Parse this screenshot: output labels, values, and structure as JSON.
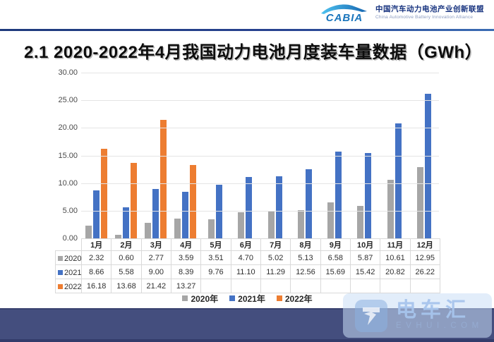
{
  "header": {
    "logo_text": "CABIA",
    "org_cn": "中国汽车动力电池产业创新联盟",
    "org_en": "China Automotive Battery Innovation Alliance"
  },
  "title": "2.1 2020-2022年4月我国动力电池月度装车量数据（GWh）",
  "chart_data": {
    "type": "bar",
    "title": "2020-2022年4月我国动力电池月度装车量数据（GWh）",
    "categories": [
      "1月",
      "2月",
      "3月",
      "4月",
      "5月",
      "6月",
      "7月",
      "8月",
      "9月",
      "10月",
      "11月",
      "12月"
    ],
    "series": [
      {
        "name": "2020年",
        "color": "#a6a6a6",
        "values": [
          2.32,
          0.6,
          2.77,
          3.59,
          3.51,
          4.7,
          5.02,
          5.13,
          6.58,
          5.87,
          10.61,
          12.95
        ]
      },
      {
        "name": "2021年",
        "color": "#4472c4",
        "values": [
          8.66,
          5.58,
          9.0,
          8.39,
          9.76,
          11.1,
          11.29,
          12.56,
          15.69,
          15.42,
          20.82,
          26.22
        ]
      },
      {
        "name": "2022年",
        "color": "#ed7d31",
        "values": [
          16.18,
          13.68,
          21.42,
          13.27,
          null,
          null,
          null,
          null,
          null,
          null,
          null,
          null
        ]
      }
    ],
    "ylim": [
      0,
      30
    ],
    "ytick_step": 5,
    "ytick_labels": [
      "0.00",
      "5.00",
      "10.00",
      "15.00",
      "20.00",
      "25.00",
      "30.00"
    ],
    "grid": true,
    "legend_position": "bottom",
    "data_table_shown": true
  },
  "watermark": {
    "brand": "电车汇",
    "domain": "EVHUI.COM"
  }
}
